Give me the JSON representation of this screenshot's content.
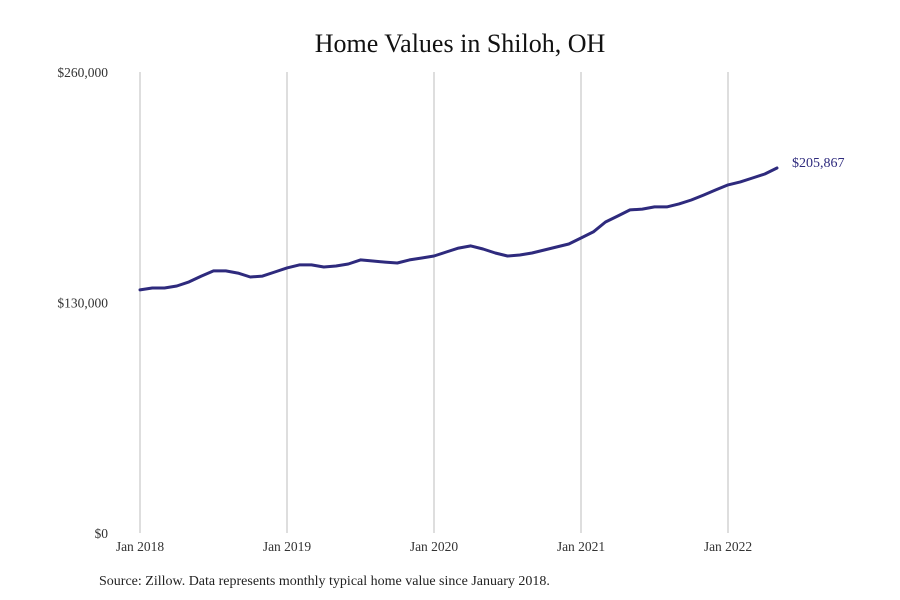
{
  "chart_data": {
    "type": "line",
    "title": "Home Values in Shiloh, OH",
    "xlabel": "",
    "ylabel": "",
    "ylim": [
      0,
      260000
    ],
    "y_ticks": [
      "$0",
      "$130,000",
      "$260,000"
    ],
    "y_tick_values": [
      0,
      130000,
      260000
    ],
    "x_ticks": [
      "Jan 2018",
      "Jan 2019",
      "Jan 2020",
      "Jan 2021",
      "Jan 2022"
    ],
    "x_tick_months": [
      0,
      12,
      24,
      36,
      48
    ],
    "grid": "vertical",
    "series": [
      {
        "name": "Typical home value",
        "color": "#2e2a7d",
        "start": "Jan 2018",
        "values": [
          137100,
          138200,
          138200,
          139300,
          141600,
          144900,
          147800,
          147800,
          146600,
          144400,
          144900,
          147200,
          149500,
          151200,
          151200,
          150000,
          150600,
          151700,
          154000,
          153400,
          152800,
          152300,
          154000,
          155100,
          156200,
          158500,
          160700,
          161900,
          160200,
          157900,
          156200,
          156800,
          157900,
          159600,
          161300,
          163000,
          166400,
          169800,
          175400,
          178800,
          182200,
          182700,
          183900,
          183900,
          185600,
          187800,
          190600,
          193500,
          196300,
          198000,
          200200,
          202500,
          205867
        ]
      }
    ],
    "end_label": "$205,867",
    "source": "Source: Zillow. Data represents monthly typical home value since January 2018."
  }
}
